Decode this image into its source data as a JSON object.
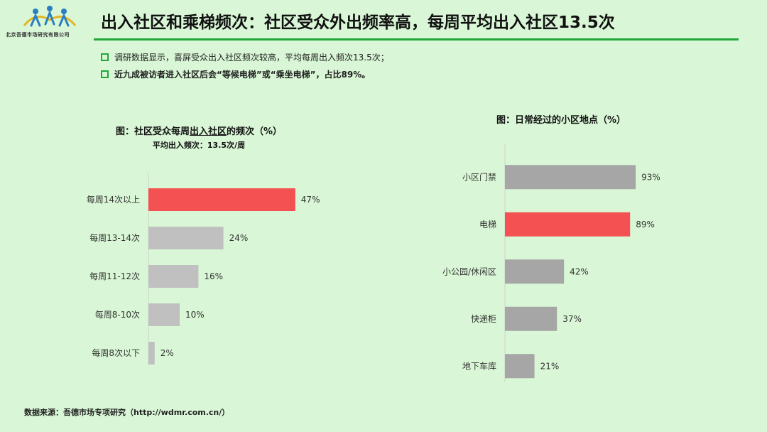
{
  "header": {
    "logo_text": "北京吾德市场研究有限公司",
    "title": "出入社区和乘梯频次：社区受众外出频率高，每周平均出入社区13.5次"
  },
  "bullets": [
    {
      "text": "调研数据显示，喜屏受众出入社区频次较高，平均每周出入频次13.5次；",
      "bold": false
    },
    {
      "text": "近九成被访者进入社区后会“等候电梯”或“乘坐电梯”，占比89%。",
      "bold": true
    }
  ],
  "colors": {
    "highlight": "#f45252",
    "left_bar": "#c0c0c0",
    "right_bar": "#a6a6a6",
    "accent": "#22a63a"
  },
  "left_chart": {
    "title_prefix": "图：社区受众每周",
    "title_underlined": "出入社区",
    "title_suffix": "的频次（%）",
    "subtitle": "平均出入频次：13.5次/周"
  },
  "right_chart": {
    "title": "图：日常经过的小区地点（%）"
  },
  "chart_data": [
    {
      "type": "bar",
      "orientation": "horizontal",
      "title": "图：社区受众每周出入社区的频次（%）",
      "subtitle": "平均出入频次：13.5次/周",
      "categories": [
        "每周14次以上",
        "每周13-14次",
        "每周11-12次",
        "每周8-10次",
        "每周8次以下"
      ],
      "values": [
        47,
        24,
        16,
        10,
        2
      ],
      "labels": [
        "47%",
        "24%",
        "16%",
        "10%",
        "2%"
      ],
      "highlight_index": 0,
      "xlim": [
        0,
        100
      ]
    },
    {
      "type": "bar",
      "orientation": "horizontal",
      "title": "图：日常经过的小区地点（%）",
      "categories": [
        "小区门禁",
        "电梯",
        "小公园/休闲区",
        "快递柜",
        "地下车库"
      ],
      "values": [
        93,
        89,
        42,
        37,
        21
      ],
      "labels": [
        "93%",
        "89%",
        "42%",
        "37%",
        "21%"
      ],
      "highlight_index": 1,
      "xlim": [
        0,
        100
      ]
    }
  ],
  "footer": {
    "source": "数据来源：吾德市场专项研究（http://wdmr.com.cn/）"
  }
}
